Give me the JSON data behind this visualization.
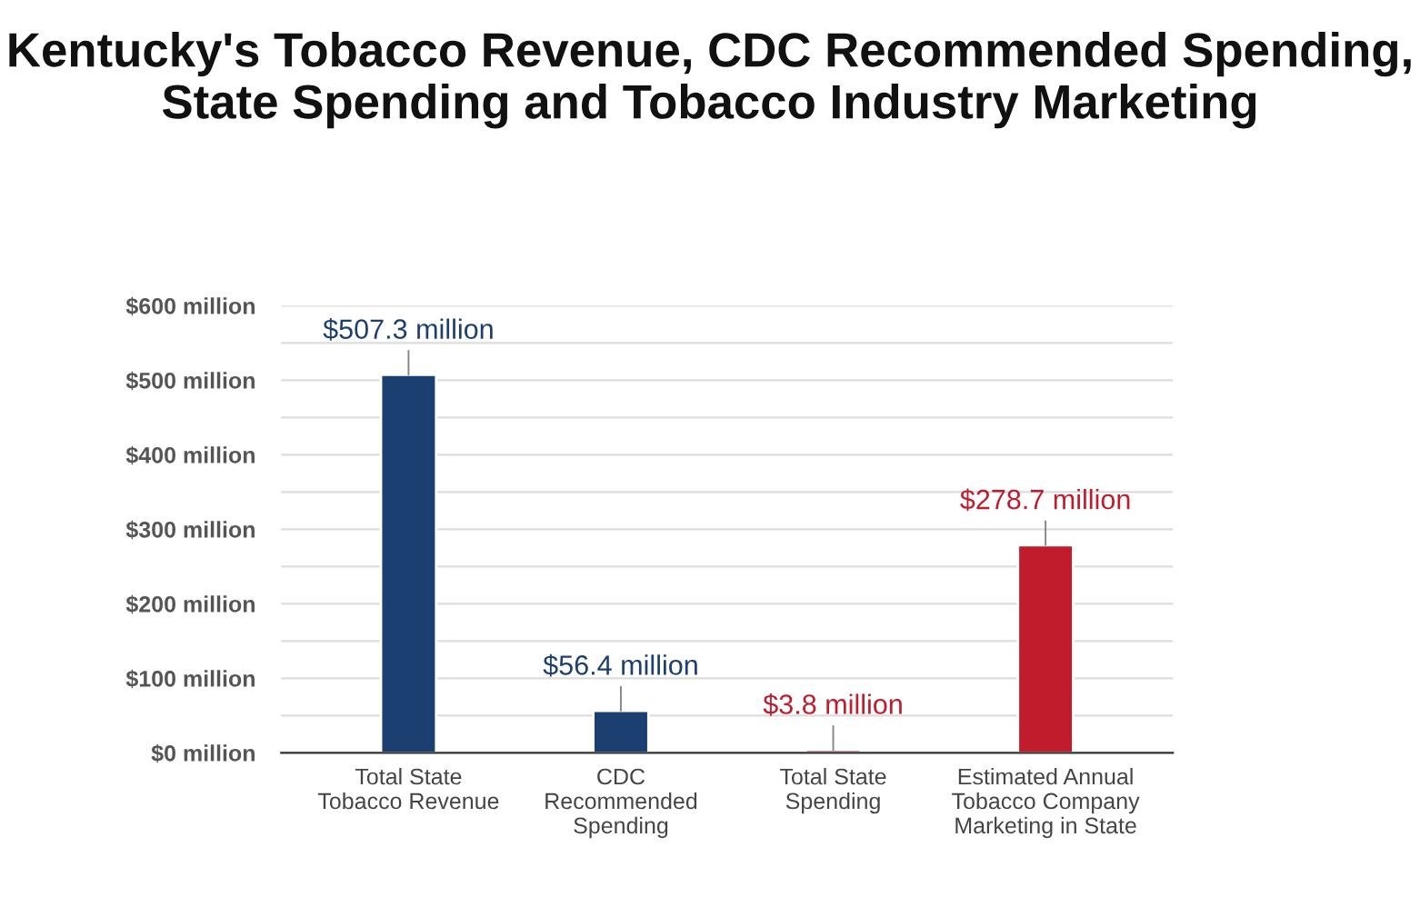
{
  "chart_data": {
    "type": "bar",
    "title": "Kentucky's Tobacco Revenue, CDC Recommended Spending,\nState Spending and Tobacco Industry Marketing",
    "categories": [
      "Total State\nTobacco Revenue",
      "CDC\nRecommended\nSpending",
      "Total State\nSpending",
      "Estimated Annual\nTobacco Company\nMarketing in State"
    ],
    "values": [
      507.3,
      56.4,
      3.8,
      278.7
    ],
    "colors": [
      "#1c3f72",
      "#1c3f72",
      "#c01c2c",
      "#c01c2c"
    ],
    "value_labels": [
      "$507.3 million",
      "$56.4 million",
      "$3.8 million",
      "$278.7 million"
    ],
    "ylim": [
      0,
      600
    ],
    "yticks": [
      {
        "value": 0,
        "label": "$0 million"
      },
      {
        "value": 50,
        "label": null
      },
      {
        "value": 100,
        "label": "$100 million"
      },
      {
        "value": 150,
        "label": null
      },
      {
        "value": 200,
        "label": "$200 million"
      },
      {
        "value": 250,
        "label": null
      },
      {
        "value": 300,
        "label": "$300 million"
      },
      {
        "value": 350,
        "label": null
      },
      {
        "value": 400,
        "label": "$400 million"
      },
      {
        "value": 450,
        "label": null
      },
      {
        "value": 500,
        "label": "$500 million"
      },
      {
        "value": 550,
        "label": null
      },
      {
        "value": 600,
        "label": "$600 million"
      }
    ],
    "grid": "y",
    "legend": false
  }
}
